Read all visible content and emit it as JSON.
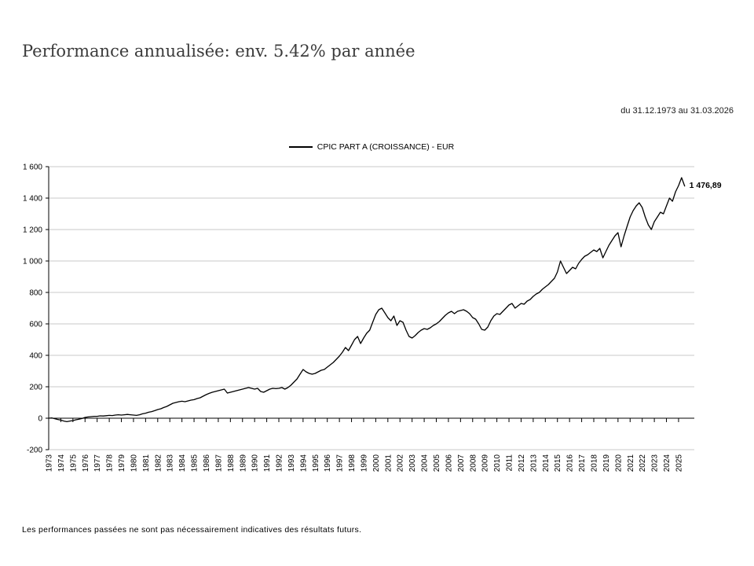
{
  "page": {
    "title": "Performance annualisée: env. 5.42% par année",
    "period": "du 31.12.1973 au 31.03.2026",
    "footnote": "Les performances passées ne sont pas nécessairement indicatives des résultats futurs."
  },
  "legend": {
    "label": "CPIC PART A (CROISSANCE) - EUR",
    "line_color": "#000000"
  },
  "chart_data": {
    "type": "line",
    "title": "Performance annualisée: env. 5.42% par année",
    "xlabel": "",
    "ylabel": "",
    "xlim": [
      1973,
      2026.3
    ],
    "ylim": [
      -200,
      1600
    ],
    "grid": true,
    "grid_color": "#c8c8c8",
    "axis_color": "#000000",
    "line_color": "#000000",
    "end_label": "1 476,89",
    "end_value": 1476.89,
    "y_ticks": [
      {
        "value": -200,
        "label": "-200"
      },
      {
        "value": 0,
        "label": "0"
      },
      {
        "value": 200,
        "label": "200"
      },
      {
        "value": 400,
        "label": "400"
      },
      {
        "value": 600,
        "label": "600"
      },
      {
        "value": 800,
        "label": "800"
      },
      {
        "value": 1000,
        "label": "1 000"
      },
      {
        "value": 1200,
        "label": "1 200"
      },
      {
        "value": 1400,
        "label": "1 400"
      },
      {
        "value": 1600,
        "label": "1 600"
      }
    ],
    "x_ticks": [
      1973,
      1974,
      1975,
      1976,
      1977,
      1978,
      1979,
      1980,
      1981,
      1982,
      1983,
      1984,
      1985,
      1986,
      1987,
      1988,
      1989,
      1990,
      1991,
      1992,
      1993,
      1994,
      1995,
      1996,
      1997,
      1998,
      1999,
      2000,
      2001,
      2002,
      2003,
      2004,
      2005,
      2006,
      2007,
      2008,
      2009,
      2010,
      2011,
      2012,
      2013,
      2014,
      2015,
      2016,
      2017,
      2018,
      2019,
      2020,
      2021,
      2022,
      2023,
      2024,
      2025
    ],
    "series": [
      {
        "name": "CPIC PART A (CROISSANCE) - EUR",
        "color": "#000000",
        "x_start": 1973.0,
        "x_step": 0.25,
        "values": [
          0,
          2,
          -3,
          -8,
          -12,
          -18,
          -22,
          -18,
          -15,
          -10,
          -6,
          -2,
          5,
          8,
          10,
          12,
          12,
          15,
          14,
          16,
          18,
          17,
          20,
          22,
          20,
          22,
          24,
          22,
          20,
          18,
          22,
          28,
          32,
          38,
          42,
          48,
          55,
          60,
          68,
          75,
          85,
          95,
          100,
          105,
          108,
          105,
          110,
          115,
          118,
          125,
          130,
          140,
          150,
          158,
          165,
          170,
          175,
          180,
          185,
          160,
          165,
          170,
          175,
          180,
          185,
          190,
          195,
          190,
          185,
          190,
          170,
          165,
          175,
          185,
          190,
          188,
          190,
          195,
          185,
          195,
          210,
          230,
          250,
          280,
          310,
          295,
          285,
          280,
          285,
          295,
          305,
          310,
          325,
          340,
          355,
          375,
          395,
          420,
          450,
          430,
          465,
          500,
          520,
          475,
          510,
          540,
          560,
          610,
          660,
          690,
          700,
          670,
          640,
          620,
          650,
          590,
          620,
          610,
          560,
          520,
          510,
          525,
          545,
          560,
          570,
          565,
          575,
          590,
          600,
          615,
          635,
          655,
          670,
          680,
          665,
          680,
          685,
          690,
          680,
          665,
          640,
          630,
          600,
          565,
          560,
          580,
          620,
          650,
          665,
          660,
          680,
          700,
          720,
          730,
          700,
          715,
          730,
          725,
          745,
          755,
          775,
          790,
          800,
          820,
          835,
          850,
          870,
          890,
          930,
          1000,
          960,
          920,
          940,
          960,
          950,
          985,
          1010,
          1030,
          1040,
          1055,
          1070,
          1060,
          1080,
          1020,
          1060,
          1100,
          1130,
          1160,
          1180,
          1090,
          1160,
          1220,
          1280,
          1320,
          1350,
          1370,
          1340,
          1280,
          1230,
          1200,
          1250,
          1280,
          1310,
          1300,
          1350,
          1400,
          1380,
          1440,
          1480,
          1530,
          1476.89
        ]
      }
    ]
  }
}
